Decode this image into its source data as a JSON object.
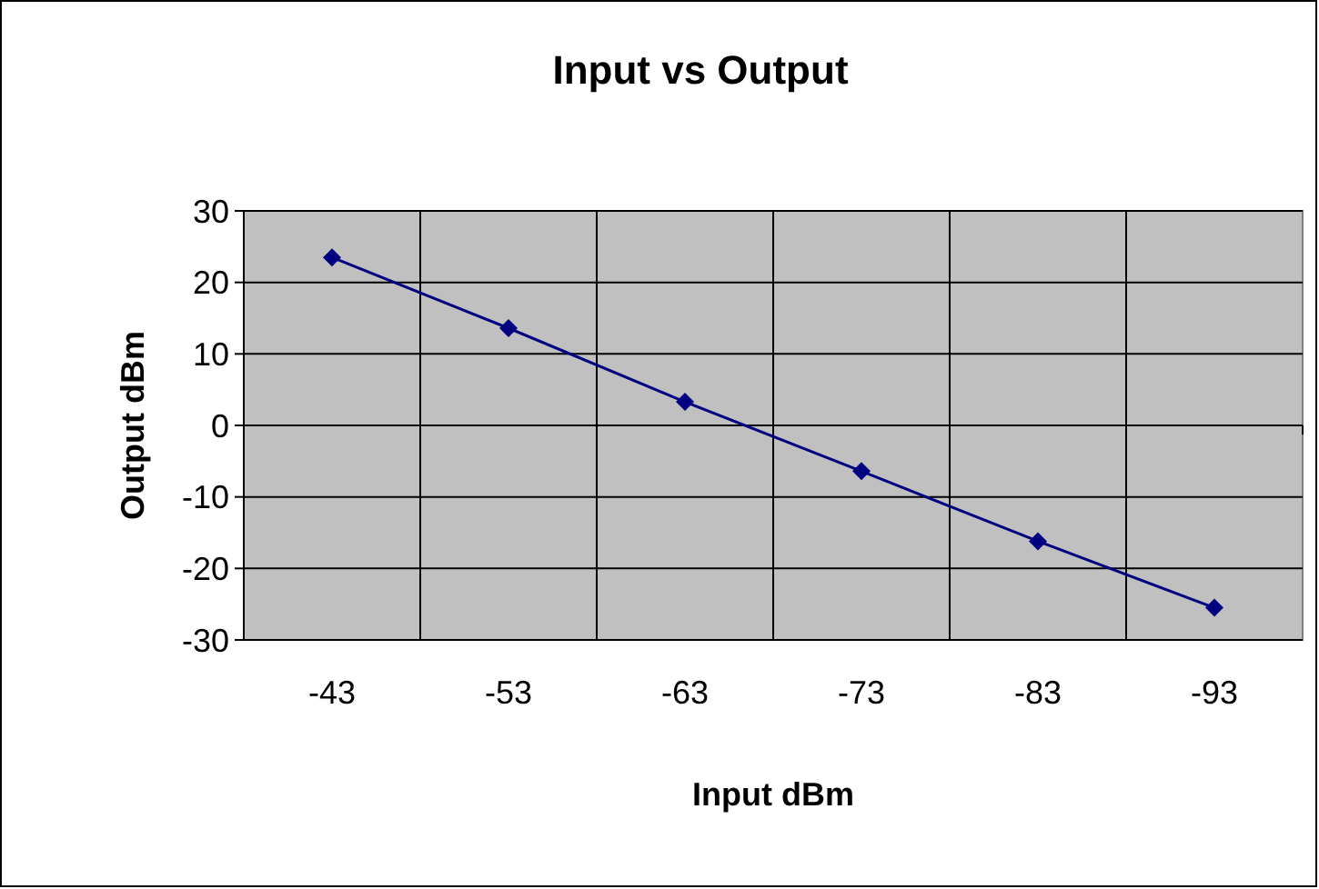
{
  "chart_data": {
    "type": "line",
    "title": "Input vs Output",
    "xlabel": "Input dBm",
    "ylabel": "Output dBm",
    "categories": [
      "-43",
      "-53",
      "-63",
      "-73",
      "-83",
      "-93"
    ],
    "series": [
      {
        "color": "#000080",
        "values": [
          23.5,
          13.6,
          3.3,
          -6.4,
          -16.2,
          -25.5
        ]
      }
    ],
    "ylim": [
      -30,
      30
    ],
    "yticks": [
      -30,
      -20,
      -10,
      0,
      10,
      20,
      30
    ],
    "grid": true,
    "marker": "diamond",
    "line_style": "solid"
  }
}
